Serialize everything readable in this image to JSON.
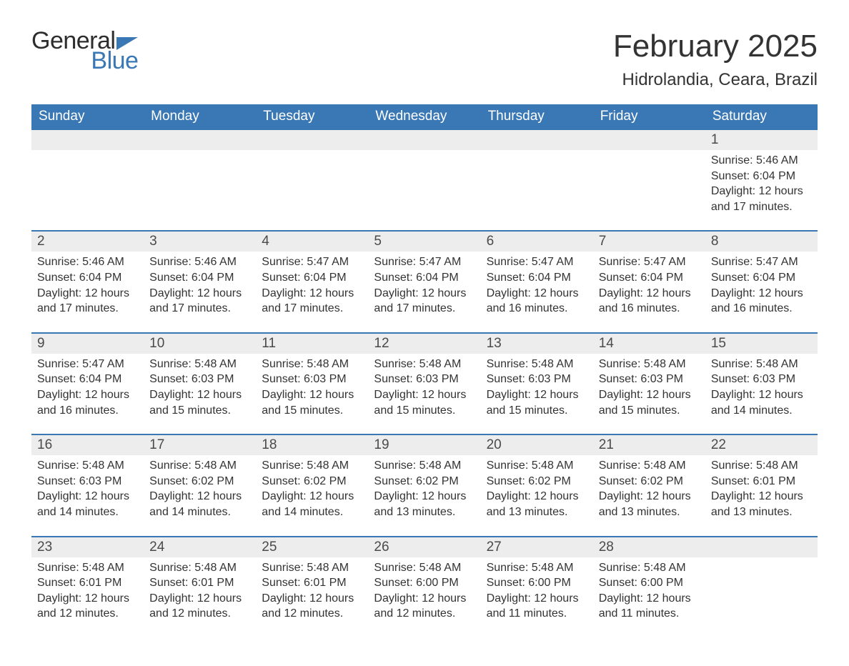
{
  "brand": {
    "word1": "General",
    "word2": "Blue",
    "brand_color": "#3a78b5"
  },
  "title": "February 2025",
  "location": "Hidrolandia, Ceara, Brazil",
  "colors": {
    "header_bg": "#3a78b5",
    "header_text": "#ffffff",
    "daynum_bg": "#ededed",
    "text": "#333333",
    "page_bg": "#ffffff",
    "row_border": "#3a78b5"
  },
  "typography": {
    "title_fontsize": 44,
    "location_fontsize": 24,
    "weekday_fontsize": 19,
    "daynum_fontsize": 19,
    "detail_fontsize": 16
  },
  "weekdays": [
    "Sunday",
    "Monday",
    "Tuesday",
    "Wednesday",
    "Thursday",
    "Friday",
    "Saturday"
  ],
  "weeks": [
    [
      null,
      null,
      null,
      null,
      null,
      null,
      {
        "n": "1",
        "sunrise": "5:46 AM",
        "sunset": "6:04 PM",
        "daylight": "12 hours and 17 minutes."
      }
    ],
    [
      {
        "n": "2",
        "sunrise": "5:46 AM",
        "sunset": "6:04 PM",
        "daylight": "12 hours and 17 minutes."
      },
      {
        "n": "3",
        "sunrise": "5:46 AM",
        "sunset": "6:04 PM",
        "daylight": "12 hours and 17 minutes."
      },
      {
        "n": "4",
        "sunrise": "5:47 AM",
        "sunset": "6:04 PM",
        "daylight": "12 hours and 17 minutes."
      },
      {
        "n": "5",
        "sunrise": "5:47 AM",
        "sunset": "6:04 PM",
        "daylight": "12 hours and 17 minutes."
      },
      {
        "n": "6",
        "sunrise": "5:47 AM",
        "sunset": "6:04 PM",
        "daylight": "12 hours and 16 minutes."
      },
      {
        "n": "7",
        "sunrise": "5:47 AM",
        "sunset": "6:04 PM",
        "daylight": "12 hours and 16 minutes."
      },
      {
        "n": "8",
        "sunrise": "5:47 AM",
        "sunset": "6:04 PM",
        "daylight": "12 hours and 16 minutes."
      }
    ],
    [
      {
        "n": "9",
        "sunrise": "5:47 AM",
        "sunset": "6:04 PM",
        "daylight": "12 hours and 16 minutes."
      },
      {
        "n": "10",
        "sunrise": "5:48 AM",
        "sunset": "6:03 PM",
        "daylight": "12 hours and 15 minutes."
      },
      {
        "n": "11",
        "sunrise": "5:48 AM",
        "sunset": "6:03 PM",
        "daylight": "12 hours and 15 minutes."
      },
      {
        "n": "12",
        "sunrise": "5:48 AM",
        "sunset": "6:03 PM",
        "daylight": "12 hours and 15 minutes."
      },
      {
        "n": "13",
        "sunrise": "5:48 AM",
        "sunset": "6:03 PM",
        "daylight": "12 hours and 15 minutes."
      },
      {
        "n": "14",
        "sunrise": "5:48 AM",
        "sunset": "6:03 PM",
        "daylight": "12 hours and 15 minutes."
      },
      {
        "n": "15",
        "sunrise": "5:48 AM",
        "sunset": "6:03 PM",
        "daylight": "12 hours and 14 minutes."
      }
    ],
    [
      {
        "n": "16",
        "sunrise": "5:48 AM",
        "sunset": "6:03 PM",
        "daylight": "12 hours and 14 minutes."
      },
      {
        "n": "17",
        "sunrise": "5:48 AM",
        "sunset": "6:02 PM",
        "daylight": "12 hours and 14 minutes."
      },
      {
        "n": "18",
        "sunrise": "5:48 AM",
        "sunset": "6:02 PM",
        "daylight": "12 hours and 14 minutes."
      },
      {
        "n": "19",
        "sunrise": "5:48 AM",
        "sunset": "6:02 PM",
        "daylight": "12 hours and 13 minutes."
      },
      {
        "n": "20",
        "sunrise": "5:48 AM",
        "sunset": "6:02 PM",
        "daylight": "12 hours and 13 minutes."
      },
      {
        "n": "21",
        "sunrise": "5:48 AM",
        "sunset": "6:02 PM",
        "daylight": "12 hours and 13 minutes."
      },
      {
        "n": "22",
        "sunrise": "5:48 AM",
        "sunset": "6:01 PM",
        "daylight": "12 hours and 13 minutes."
      }
    ],
    [
      {
        "n": "23",
        "sunrise": "5:48 AM",
        "sunset": "6:01 PM",
        "daylight": "12 hours and 12 minutes."
      },
      {
        "n": "24",
        "sunrise": "5:48 AM",
        "sunset": "6:01 PM",
        "daylight": "12 hours and 12 minutes."
      },
      {
        "n": "25",
        "sunrise": "5:48 AM",
        "sunset": "6:01 PM",
        "daylight": "12 hours and 12 minutes."
      },
      {
        "n": "26",
        "sunrise": "5:48 AM",
        "sunset": "6:00 PM",
        "daylight": "12 hours and 12 minutes."
      },
      {
        "n": "27",
        "sunrise": "5:48 AM",
        "sunset": "6:00 PM",
        "daylight": "12 hours and 11 minutes."
      },
      {
        "n": "28",
        "sunrise": "5:48 AM",
        "sunset": "6:00 PM",
        "daylight": "12 hours and 11 minutes."
      },
      null
    ]
  ],
  "labels": {
    "sunrise": "Sunrise: ",
    "sunset": "Sunset: ",
    "daylight": "Daylight: "
  }
}
